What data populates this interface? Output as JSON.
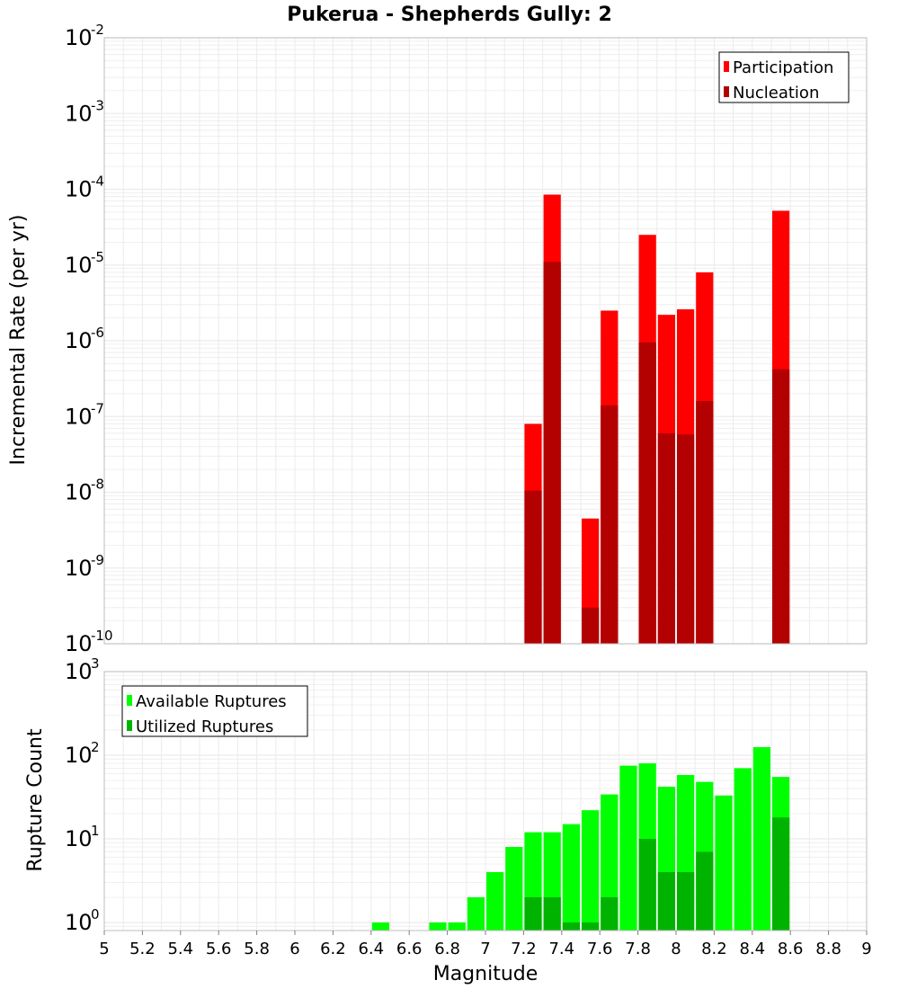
{
  "title": "Pukerua - Shepherds Gully: 2",
  "chart_data": [
    {
      "type": "bar",
      "log_y": true,
      "grid": true,
      "ylabel": "Incremental Rate (per yr)",
      "ylim": [
        1e-10,
        0.01
      ],
      "xlim": [
        5,
        9
      ],
      "ytick_exponents": [
        -10,
        -9,
        -8,
        -7,
        -6,
        -5,
        -4,
        -3,
        -2
      ],
      "legend_placement": "top-right",
      "bar_width": 0.1,
      "series": [
        {
          "name": "Participation",
          "color": "#ff0000",
          "x": [
            7.25,
            7.35,
            7.55,
            7.65,
            7.85,
            7.95,
            8.05,
            8.15,
            8.55
          ],
          "values": [
            8e-08,
            8.5e-05,
            4.5e-09,
            2.5e-06,
            2.5e-05,
            2.2e-06,
            2.6e-06,
            8e-06,
            5.2e-05
          ]
        },
        {
          "name": "Nucleation",
          "color": "#b30000",
          "x": [
            7.25,
            7.35,
            7.55,
            7.65,
            7.85,
            7.95,
            8.05,
            8.15,
            8.55
          ],
          "values": [
            1.05e-08,
            1.1e-05,
            3e-10,
            1.4e-07,
            9.5e-07,
            6e-08,
            5.8e-08,
            1.6e-07,
            4.2e-07
          ]
        }
      ]
    },
    {
      "type": "bar",
      "log_y": true,
      "grid": true,
      "xlabel": "Magnitude",
      "ylabel": "Rupture Count",
      "ylim": [
        0.8,
        1000
      ],
      "xlim": [
        5,
        9
      ],
      "xticks": [
        "5",
        "5.2",
        "5.4",
        "5.6",
        "5.8",
        "6",
        "6.2",
        "6.4",
        "6.6",
        "6.8",
        "7",
        "7.2",
        "7.4",
        "7.6",
        "7.8",
        "8",
        "8.2",
        "8.4",
        "8.6",
        "8.8",
        "9"
      ],
      "ytick_exponents": [
        0,
        1,
        2,
        3
      ],
      "legend_placement": "top-left",
      "bar_width": 0.1,
      "series": [
        {
          "name": "Available Ruptures",
          "color": "#00ff00",
          "x": [
            6.45,
            6.75,
            6.85,
            6.95,
            7.05,
            7.15,
            7.25,
            7.35,
            7.45,
            7.55,
            7.65,
            7.75,
            7.85,
            7.95,
            8.05,
            8.15,
            8.25,
            8.35,
            8.45,
            8.55
          ],
          "values": [
            1,
            1,
            1,
            2,
            4,
            8,
            12,
            12,
            15,
            22,
            34,
            75,
            80,
            42,
            58,
            48,
            33,
            70,
            125,
            55
          ]
        },
        {
          "name": "Utilized Ruptures",
          "color": "#00b300",
          "x": [
            7.25,
            7.35,
            7.45,
            7.55,
            7.65,
            7.85,
            7.95,
            8.05,
            8.15,
            8.55
          ],
          "values": [
            2,
            2,
            1,
            1,
            2,
            10,
            4,
            4,
            7,
            18
          ]
        }
      ]
    }
  ],
  "colors": {
    "grid": "#ebebeb",
    "frame": "#bdbdbd",
    "background": "#ffffff"
  }
}
